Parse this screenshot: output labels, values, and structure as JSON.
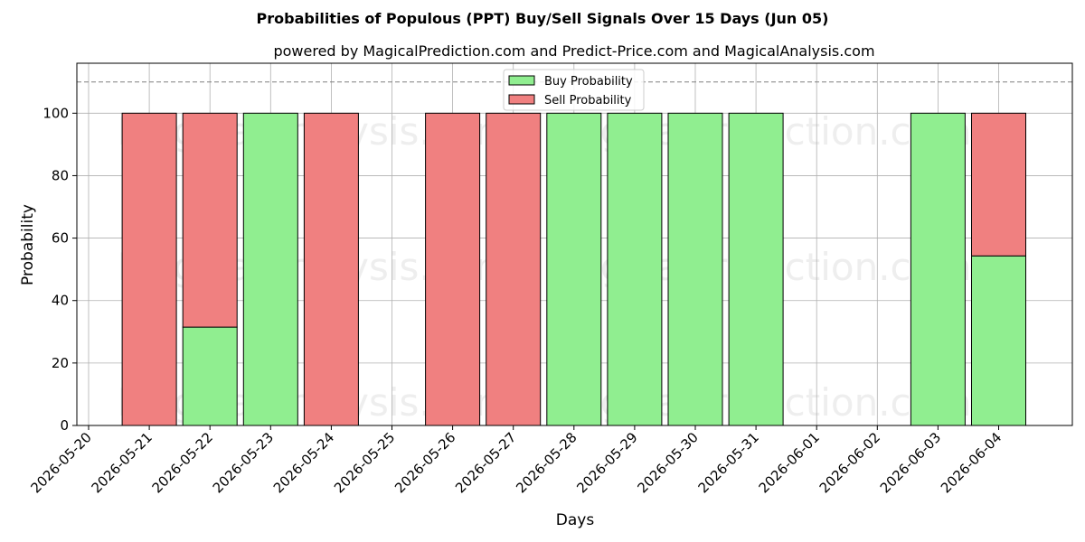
{
  "chart_data": {
    "type": "bar",
    "stacked": true,
    "title": "Probabilities of Populous (PPT) Buy/Sell Signals Over 15 Days (Jun 05)",
    "subtitle": "powered by MagicalPrediction.com and Predict-Price.com and MagicalAnalysis.com",
    "xlabel": "Days",
    "ylabel": "Probability",
    "categories": [
      "2026-05-20",
      "2026-05-21",
      "2026-05-22",
      "2026-05-23",
      "2026-05-24",
      "2026-05-25",
      "2026-05-26",
      "2026-05-27",
      "2026-05-28",
      "2026-05-29",
      "2026-05-30",
      "2026-05-31",
      "2026-06-01",
      "2026-06-02",
      "2026-06-03",
      "2026-06-04"
    ],
    "series": [
      {
        "name": "Buy Probability",
        "color": "#90ee90",
        "values": [
          null,
          0,
          31.5,
          100,
          0,
          null,
          0,
          0,
          100,
          100,
          100,
          100,
          null,
          null,
          100,
          54.3
        ]
      },
      {
        "name": "Sell Probability",
        "color": "#f08080",
        "values": [
          null,
          100,
          68.5,
          0,
          100,
          null,
          100,
          100,
          0,
          0,
          0,
          0,
          null,
          null,
          0,
          45.7
        ]
      }
    ],
    "ylim": [
      0,
      116
    ],
    "yticks": [
      0,
      20,
      40,
      60,
      80,
      100
    ],
    "reference_line": 110,
    "grid": true,
    "legend_position": "top-center",
    "watermarks": [
      "MagicalAnalysis.com",
      "MagicalPrediction.com"
    ]
  }
}
